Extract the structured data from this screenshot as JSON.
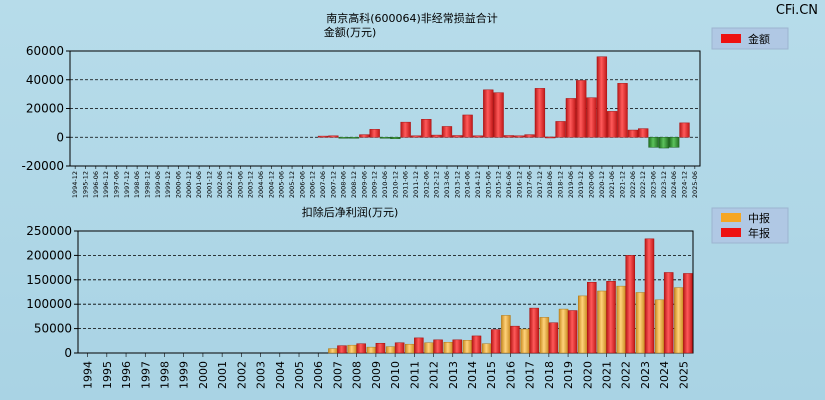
{
  "watermark": "CFi.CN",
  "colors": {
    "red": "#e8262b",
    "red_dark": "#b01010",
    "green": "#2e8b2e",
    "orange": "#f0a030",
    "grid": "#000000"
  },
  "chart_data": [
    {
      "type": "bar",
      "title": "南京高科(600064)非经常损益合计",
      "ylabel": "金额(万元)",
      "legend": [
        "金额"
      ],
      "ylim": [
        -20000,
        60000
      ],
      "yticks": [
        -20000,
        0,
        20000,
        40000,
        60000
      ],
      "categories": [
        "1994-12",
        "1995-12",
        "1996-06",
        "1996-12",
        "1997-06",
        "1997-12",
        "1998-06",
        "1998-12",
        "1999-06",
        "1999-12",
        "2000-06",
        "2000-12",
        "2001-06",
        "2001-12",
        "2002-06",
        "2002-12",
        "2003-06",
        "2003-12",
        "2004-06",
        "2004-12",
        "2005-06",
        "2005-12",
        "2006-06",
        "2006-12",
        "2007-06",
        "2007-12",
        "2008-06",
        "2008-12",
        "2009-06",
        "2009-12",
        "2010-06",
        "2010-12",
        "2011-06",
        "2011-12",
        "2012-06",
        "2012-12",
        "2013-06",
        "2013-12",
        "2014-06",
        "2014-12",
        "2015-06",
        "2015-12",
        "2016-06",
        "2016-12",
        "2017-06",
        "2017-12",
        "2018-06",
        "2018-12",
        "2019-06",
        "2019-12",
        "2020-06",
        "2020-12",
        "2021-06",
        "2021-12",
        "2022-06",
        "2022-12",
        "2023-06",
        "2023-12",
        "2024-06",
        "2024-12",
        "2025-06"
      ],
      "values": [
        0,
        0,
        0,
        0,
        0,
        0,
        0,
        0,
        0,
        0,
        0,
        0,
        0,
        0,
        0,
        0,
        0,
        0,
        0,
        0,
        0,
        0,
        0,
        0,
        800,
        1000,
        -300,
        -400,
        1800,
        5500,
        -200,
        -1000,
        10500,
        1000,
        12500,
        1500,
        7500,
        1200,
        15500,
        1000,
        33000,
        31000,
        1200,
        1000,
        1800,
        34000,
        200,
        11000,
        27000,
        39500,
        27500,
        56000,
        18000,
        37500,
        5000,
        6000,
        -7000,
        -7500,
        -7000,
        10000,
        0
      ]
    },
    {
      "type": "bar",
      "title": "扣除后净利润(万元)",
      "legend": [
        "中报",
        "年报"
      ],
      "ylim": [
        0,
        250000
      ],
      "yticks": [
        0,
        50000,
        100000,
        150000,
        200000,
        250000
      ],
      "categories": [
        "1994",
        "1995",
        "1996",
        "1997",
        "1998",
        "1999",
        "2000",
        "2001",
        "2002",
        "2003",
        "2004",
        "2005",
        "2006",
        "2007",
        "2008",
        "2009",
        "2010",
        "2011",
        "2012",
        "2013",
        "2014",
        "2015",
        "2016",
        "2017",
        "2018",
        "2019",
        "2020",
        "2021",
        "2022",
        "2023",
        "2024",
        "2025"
      ],
      "series": [
        {
          "name": "中报",
          "values": [
            0,
            0,
            0,
            0,
            0,
            0,
            0,
            0,
            0,
            0,
            0,
            0,
            0,
            9000,
            16000,
            12000,
            13000,
            18000,
            21000,
            22000,
            26000,
            19000,
            77000,
            49000,
            73000,
            90000,
            117000,
            127000,
            137000,
            124000,
            109000,
            134000
          ]
        },
        {
          "name": "年报",
          "values": [
            0,
            0,
            0,
            0,
            0,
            0,
            0,
            0,
            0,
            0,
            0,
            0,
            0,
            15000,
            19000,
            20000,
            21000,
            31000,
            27000,
            27000,
            35000,
            48000,
            55000,
            92000,
            62000,
            87000,
            145000,
            147000,
            200000,
            234000,
            165000,
            163000
          ]
        }
      ]
    }
  ]
}
